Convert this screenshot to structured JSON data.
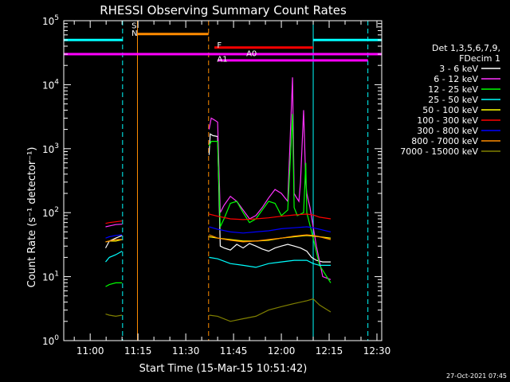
{
  "chart_data": {
    "type": "line",
    "title": "RHESSI Observing Summary Count Rates",
    "xlabel": "Start Time (15-Mar-15 10:51:42)",
    "ylabel": "Count Rate (s⁻¹ detector⁻¹)",
    "ylabel_plain": "Count Rate (s^-1 detector^-1)",
    "y_scale": "log",
    "ylim": [
      1,
      100000
    ],
    "xlim": [
      "10:51:42",
      "12:31:30"
    ],
    "x_ticks": [
      "11:00",
      "11:15",
      "11:30",
      "11:45",
      "12:00",
      "12:15",
      "12:30"
    ],
    "y_ticks": [
      {
        "value": 1,
        "label": "10",
        "exp": "0"
      },
      {
        "value": 10,
        "label": "10",
        "exp": "1"
      },
      {
        "value": 100,
        "label": "10",
        "exp": "2"
      },
      {
        "value": 1000,
        "label": "10",
        "exp": "3"
      },
      {
        "value": 10000,
        "label": "10",
        "exp": "4"
      },
      {
        "value": 100000,
        "label": "10",
        "exp": "5"
      }
    ],
    "legend_header": [
      "Det 1,3,5,6,7,9,",
      "FDecim 1"
    ],
    "legend_position": "right",
    "timestamp": "27-Oct-2021 07:45",
    "series": [
      {
        "name": "3 - 6 keV",
        "color": "#ffffff",
        "segments": [
          {
            "t": [
              "11:04:50",
              "11:06",
              "11:08",
              "11:10"
            ],
            "v": [
              28,
              36,
              40,
              44
            ]
          },
          {
            "t": [
              "11:37:20",
              "11:37:40",
              "11:38:30",
              "11:40",
              "11:40:50",
              "11:42",
              "11:44",
              "11:46",
              "11:48",
              "11:50",
              "11:52",
              "11:54",
              "11:56",
              "11:58",
              "12:00",
              "12:02",
              "12:04",
              "12:06",
              "12:08",
              "12:09:30",
              "12:11",
              "12:13",
              "12:15:30"
            ],
            "v": [
              800,
              1700,
              1600,
              1550,
              30,
              28,
              26,
              32,
              28,
              33,
              30,
              27,
              25,
              28,
              30,
              32,
              30,
              28,
              25,
              20,
              18,
              17,
              17
            ]
          }
        ]
      },
      {
        "name": "6 - 12 keV",
        "color": "#ff33ff",
        "segments": [
          {
            "t": [
              "11:04:50",
              "11:06",
              "11:08",
              "11:10"
            ],
            "v": [
              60,
              62,
              65,
              66
            ]
          },
          {
            "t": [
              "11:37:20",
              "11:38",
              "11:39",
              "11:40",
              "11:40:50",
              "11:42",
              "11:44",
              "11:46",
              "11:48",
              "11:50",
              "11:52",
              "11:54",
              "11:56",
              "11:58",
              "12:00",
              "12:02",
              "12:03:30",
              "12:04",
              "12:04:30",
              "12:05:30",
              "12:06",
              "12:07",
              "12:07:40",
              "12:08",
              "12:09",
              "12:10",
              "12:11",
              "12:13",
              "12:15:30"
            ],
            "v": [
              2000,
              3000,
              2800,
              2600,
              100,
              130,
              180,
              150,
              110,
              80,
              90,
              120,
              170,
              230,
              200,
              150,
              13000,
              200,
              180,
              150,
              300,
              4000,
              300,
              200,
              120,
              60,
              30,
              10,
              9
            ]
          }
        ]
      },
      {
        "name": "12 - 25 keV",
        "color": "#00ff00",
        "segments": [
          {
            "t": [
              "11:04:50",
              "11:06",
              "11:08",
              "11:10"
            ],
            "v": [
              7,
              7.5,
              8,
              8
            ]
          },
          {
            "t": [
              "11:37:20",
              "11:38",
              "11:40",
              "11:40:50",
              "11:42",
              "11:44",
              "11:46",
              "11:48",
              "11:50",
              "11:52",
              "11:54",
              "11:56",
              "11:58",
              "12:00",
              "12:02",
              "12:03:30",
              "12:04",
              "12:05",
              "12:07",
              "12:07:40",
              "12:08",
              "12:10",
              "12:12",
              "12:15:30"
            ],
            "v": [
              1100,
              1300,
              1300,
              60,
              80,
              140,
              150,
              100,
              70,
              80,
              110,
              150,
              140,
              90,
              110,
              3500,
              120,
              90,
              100,
              600,
              100,
              40,
              15,
              8
            ]
          }
        ]
      },
      {
        "name": "25 - 50 keV",
        "color": "#00ffff",
        "segments": [
          {
            "t": [
              "11:04:50",
              "11:06",
              "11:08",
              "11:10"
            ],
            "v": [
              17,
              20,
              22,
              25
            ]
          },
          {
            "t": [
              "11:37:20",
              "11:40",
              "11:44",
              "11:48",
              "11:52",
              "11:56",
              "12:00",
              "12:04",
              "12:08",
              "12:10",
              "12:12",
              "12:15:30"
            ],
            "v": [
              20,
              19,
              16,
              15,
              14,
              16,
              17,
              18,
              18,
              16,
              15,
              15
            ]
          }
        ]
      },
      {
        "name": "50 - 100 keV",
        "color": "#ffff00",
        "segments": [
          {
            "t": [
              "11:04:50",
              "11:06",
              "11:08",
              "11:10"
            ],
            "v": [
              35,
              36,
              36,
              38
            ]
          },
          {
            "t": [
              "11:37:20",
              "11:40",
              "11:44",
              "11:48",
              "11:52",
              "11:56",
              "12:00",
              "12:04",
              "12:08",
              "12:10",
              "12:12",
              "12:15:30"
            ],
            "v": [
              42,
              40,
              38,
              36,
              36,
              37,
              40,
              42,
              44,
              43,
              42,
              40
            ]
          }
        ]
      },
      {
        "name": "100 - 300 keV",
        "color": "#ff0000",
        "segments": [
          {
            "t": [
              "11:04:50",
              "11:06",
              "11:08",
              "11:10"
            ],
            "v": [
              68,
              70,
              72,
              74
            ]
          },
          {
            "t": [
              "11:37:20",
              "11:40",
              "11:44",
              "11:48",
              "11:52",
              "11:56",
              "12:00",
              "12:04",
              "12:08",
              "12:10",
              "12:12",
              "12:15:30"
            ],
            "v": [
              95,
              88,
              80,
              78,
              80,
              83,
              88,
              92,
              95,
              92,
              85,
              80
            ]
          }
        ]
      },
      {
        "name": "300 - 800 keV",
        "color": "#0000ff",
        "segments": [
          {
            "t": [
              "11:04:50",
              "11:06",
              "11:08",
              "11:10"
            ],
            "v": [
              40,
              42,
              44,
              45
            ]
          },
          {
            "t": [
              "11:37:20",
              "11:40",
              "11:44",
              "11:48",
              "11:52",
              "11:56",
              "12:00",
              "12:04",
              "12:08",
              "12:10",
              "12:12",
              "12:15:30"
            ],
            "v": [
              60,
              55,
              50,
              48,
              50,
              52,
              56,
              58,
              60,
              58,
              55,
              50
            ]
          }
        ]
      },
      {
        "name": "800 - 7000 keV",
        "color": "#ff8c00",
        "segments": [
          {
            "t": [
              "11:04:50",
              "11:06",
              "11:08",
              "11:10"
            ],
            "v": [
              35,
              36,
              38,
              38
            ]
          },
          {
            "t": [
              "11:37:20",
              "11:40",
              "11:44",
              "11:48",
              "11:52",
              "11:56",
              "12:00",
              "12:04",
              "12:08",
              "12:10",
              "12:12",
              "12:15:30"
            ],
            "v": [
              45,
              40,
              37,
              35,
              36,
              38,
              40,
              43,
              45,
              44,
              42,
              38
            ]
          }
        ]
      },
      {
        "name": "7000 - 15000 keV",
        "color": "#808000",
        "segments": [
          {
            "t": [
              "11:04:50",
              "11:06",
              "11:08",
              "11:10"
            ],
            "v": [
              2.6,
              2.5,
              2.4,
              2.5
            ]
          },
          {
            "t": [
              "11:37:20",
              "11:40",
              "11:44",
              "11:48",
              "11:52",
              "11:56",
              "12:00",
              "12:04",
              "12:08",
              "12:10",
              "12:12",
              "12:15:30"
            ],
            "v": [
              2.5,
              2.4,
              2.0,
              2.2,
              2.4,
              3.0,
              3.4,
              3.8,
              4.2,
              4.5,
              3.6,
              2.8
            ]
          }
        ]
      }
    ],
    "vertical_lines": [
      {
        "t": "11:10:10",
        "color": "#00ffff",
        "style": "dashed"
      },
      {
        "t": "11:14:50",
        "color": "#ff8c00",
        "style": "solid"
      },
      {
        "t": "11:37:10",
        "color": "#ff8c00",
        "style": "dashed"
      },
      {
        "t": "12:10:00",
        "color": "#00ffff",
        "style": "solid"
      },
      {
        "t": "12:27:10",
        "color": "#00ffff",
        "style": "dashed"
      }
    ],
    "flag_bars": [
      {
        "label": "N",
        "color": "#00ffff",
        "y": 50000,
        "segments": [
          [
            "10:51:42",
            "11:10:10"
          ],
          [
            "12:10:00",
            "12:31:30"
          ]
        ]
      },
      {
        "label": "S",
        "color": "#ff8c00",
        "y": 62000,
        "segments": [
          [
            "11:14:50",
            "11:37:10"
          ]
        ]
      },
      {
        "label": "F",
        "color": "#ff0000",
        "y": 38000,
        "segments": [
          [
            "11:39:00",
            "12:10:00"
          ]
        ]
      },
      {
        "label": "A0",
        "color": "#ff00ff",
        "y": 30000,
        "segments": [
          [
            "10:51:42",
            "11:14:50"
          ],
          [
            "11:14:50",
            "12:10:00"
          ],
          [
            "12:10:00",
            "12:31:30"
          ]
        ]
      },
      {
        "label": "A1",
        "color": "#ff00ff",
        "y": 24000,
        "segments": [
          [
            "11:40:00",
            "12:27:10"
          ]
        ]
      }
    ],
    "flag_labels": [
      {
        "label": "S",
        "color": "#ff8c00",
        "t": "11:13:00",
        "v": 76000
      },
      {
        "label": "N",
        "color": "#00ffff",
        "t": "11:13:00",
        "v": 58000
      },
      {
        "label": "F",
        "color": "#ff0000",
        "t": "11:39:50",
        "v": 38000
      },
      {
        "label": "A0",
        "color": "#ff00ff",
        "t": "11:49:00",
        "v": 28000
      },
      {
        "label": "A1",
        "color": "#ff00ff",
        "t": "11:39:50",
        "v": 23000
      }
    ]
  }
}
